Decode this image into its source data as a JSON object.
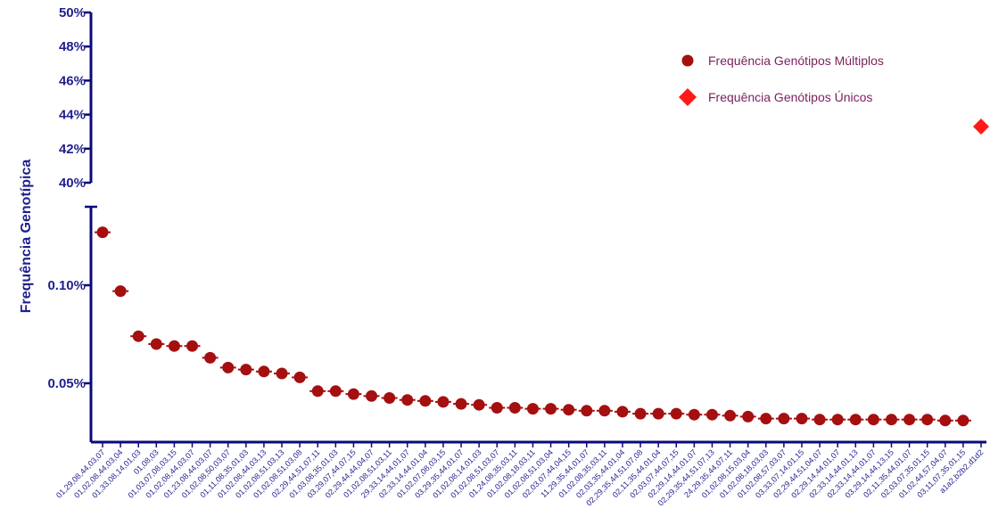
{
  "chart_data": {
    "type": "scatter",
    "ylabel": "Frequência Genotípica",
    "axis_break": true,
    "upper_panel": {
      "ylim": [
        40,
        50
      ],
      "tick_labels": [
        "40%",
        "42%",
        "44%",
        "46%",
        "48%",
        "50%"
      ],
      "tick_values": [
        40,
        42,
        44,
        46,
        48,
        50
      ]
    },
    "lower_panel": {
      "ylim": [
        0.02,
        0.14
      ],
      "tick_labels": [
        "0.05%",
        "0.10%"
      ],
      "tick_values": [
        0.05,
        0.1
      ]
    },
    "categories": [
      "01,29,08,44,03,07",
      "01,02,08,44,03,04",
      "01,33,08,14,01,03",
      "01,08,03",
      "01,03,07,08,03,15",
      "01,02,08,44,03,07",
      "01,23,08,44,03,07",
      "01,02,08,50,03,07",
      "01,11,08,35,01,03",
      "01,02,08,44,03,13",
      "01,02,08,51,03,13",
      "01,02,08,51,03,08",
      "02,29,44,51,07,11",
      "01,03,08,35,01,03",
      "03,29,07,44,07,15",
      "02,29,44,44,04,07",
      "01,02,08,51,03,11",
      "29,33,14,44,01,07",
      "02,33,14,44,01,04",
      "01,02,07,08,03,15",
      "03,29,35,44,01,07",
      "01,02,08,14,01,03",
      "01,02,08,51,03,07",
      "01,24,08,35,03,11",
      "01,02,08,18,03,11",
      "01,02,08,51,03,04",
      "02,03,07,44,04,15",
      "11,29,35,44,01,07",
      "01,02,08,35,03,11",
      "02,03,35,44,01,04",
      "02,29,35,44,51,07,08",
      "02,11,35,44,01,04",
      "02,03,07,44,07,15",
      "02,29,14,44,01,07",
      "02,29,35,44,51,07,13",
      "24,29,35,44,07,11",
      "01,02,08,15,03,04",
      "01,02,08,18,03,03",
      "01,02,08,57,03,07",
      "03,33,07,14,01,15",
      "02,29,44,51,04,07",
      "02,29,14,44,01,07",
      "02,33,14,44,01,13",
      "02,33,14,44,01,07",
      "03,29,14,44,13,15",
      "02,11,35,44,01,07",
      "02,03,07,35,01,15",
      "01,02,44,57,04,07",
      "03,11,07,35,01,15",
      "a1a2,b2b2,d1d2"
    ],
    "series": [
      {
        "name": "Frequência Genótipos Múltiplos",
        "color": "#a50f0f",
        "marker": "circle",
        "values": [
          0.127,
          0.097,
          0.074,
          0.07,
          0.069,
          0.069,
          0.063,
          0.058,
          0.057,
          0.056,
          0.055,
          0.053,
          0.046,
          0.046,
          0.0445,
          0.0435,
          0.0425,
          0.0415,
          0.041,
          0.0405,
          0.0395,
          0.039,
          0.0375,
          0.0375,
          0.037,
          0.037,
          0.0365,
          0.036,
          0.036,
          0.0355,
          0.0345,
          0.0345,
          0.0345,
          0.034,
          0.034,
          0.0335,
          0.033,
          0.032,
          0.032,
          0.032,
          0.0315,
          0.0315,
          0.0315,
          0.0315,
          0.0315,
          0.0315,
          0.0315,
          0.031,
          0.031,
          null
        ]
      },
      {
        "name": "Frequência Genótipos Únicos",
        "color": "#ff1a1a",
        "marker": "diamond",
        "values": [
          null,
          null,
          null,
          null,
          null,
          null,
          null,
          null,
          null,
          null,
          null,
          null,
          null,
          null,
          null,
          null,
          null,
          null,
          null,
          null,
          null,
          null,
          null,
          null,
          null,
          null,
          null,
          null,
          null,
          null,
          null,
          null,
          null,
          null,
          null,
          null,
          null,
          null,
          null,
          null,
          null,
          null,
          null,
          null,
          null,
          null,
          null,
          null,
          null,
          43.3
        ]
      }
    ],
    "legend_position": "top-right",
    "grid": false
  },
  "colors": {
    "axis": "#0a0a7a",
    "tick_text": "#1f1f8f",
    "legend_text": "#7a1f5c"
  }
}
